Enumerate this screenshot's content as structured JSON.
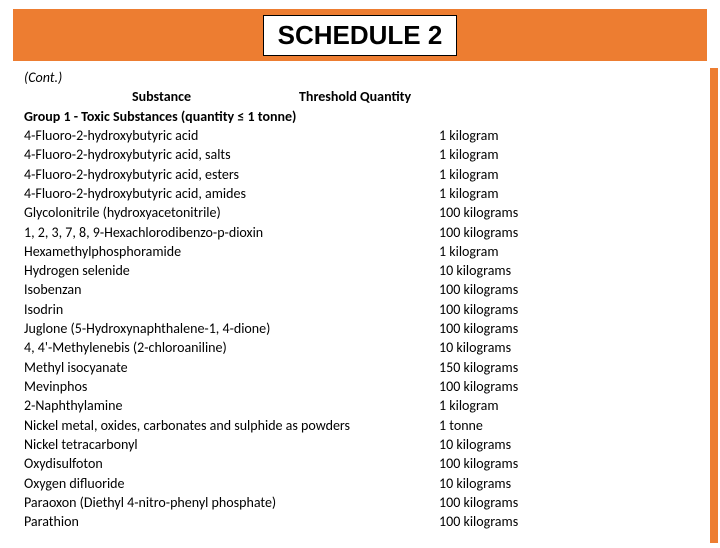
{
  "title": "SCHEDULE 2",
  "cont": "(Cont.)",
  "header_substance": "Substance",
  "header_threshold": "Threshold Quantity",
  "group_line": "Group 1 - Toxic Substances (quantity ≤ 1 tonne)",
  "rows": [
    {
      "s": "4-Fluoro-2-hydroxybutyric acid",
      "q": "1 kilogram"
    },
    {
      "s": "4-Fluoro-2-hydroxybutyric acid, salts",
      "q": "1 kilogram"
    },
    {
      "s": "4-Fluoro-2-hydroxybutyric acid, esters",
      "q": "1 kilogram"
    },
    {
      "s": "4-Fluoro-2-hydroxybutyric acid, amides",
      "q": "1 kilogram"
    },
    {
      "s": "Glycolonitrile (hydroxyacetonitrile)",
      "q": "100 kilograms"
    },
    {
      "s": "1, 2, 3, 7, 8, 9-Hexachlorodibenzo-p-dioxin",
      "q": "100 kilograms"
    },
    {
      "s": "Hexamethylphosphoramide",
      "q": "1 kilogram"
    },
    {
      "s": "Hydrogen selenide",
      "q": "10 kilograms"
    },
    {
      "s": "Isobenzan",
      "q": "100 kilograms"
    },
    {
      "s": "Isodrin",
      "q": "100 kilograms"
    },
    {
      "s": "Juglone (5-Hydroxynaphthalene-1, 4-dione)",
      "q": "100 kilograms"
    },
    {
      "s": "4, 4'-Methylenebis (2-chloroaniline)",
      "q": "10 kilograms"
    },
    {
      "s": "Methyl isocyanate",
      "q": "150 kilograms"
    },
    {
      "s": "Mevinphos",
      "q": "100 kilograms"
    },
    {
      "s": "2-Naphthylamine",
      "q": "1 kilogram"
    },
    {
      "s": "Nickel metal, oxides, carbonates and sulphide as powders",
      "q": "1 tonne"
    },
    {
      "s": "Nickel tetracarbonyl",
      "q": "10 kilograms"
    },
    {
      "s": "Oxydisulfoton",
      "q": "100 kilograms"
    },
    {
      "s": "Oxygen difluoride",
      "q": "10 kilograms"
    },
    {
      "s": "Paraoxon (Diethyl 4-nitro-phenyl phosphate)",
      "q": "100 kilograms"
    },
    {
      "s": "Parathion",
      "q": "100 kilograms"
    }
  ],
  "colors": {
    "accent": "#ed7d31",
    "text": "#000000",
    "bg": "#ffffff"
  }
}
